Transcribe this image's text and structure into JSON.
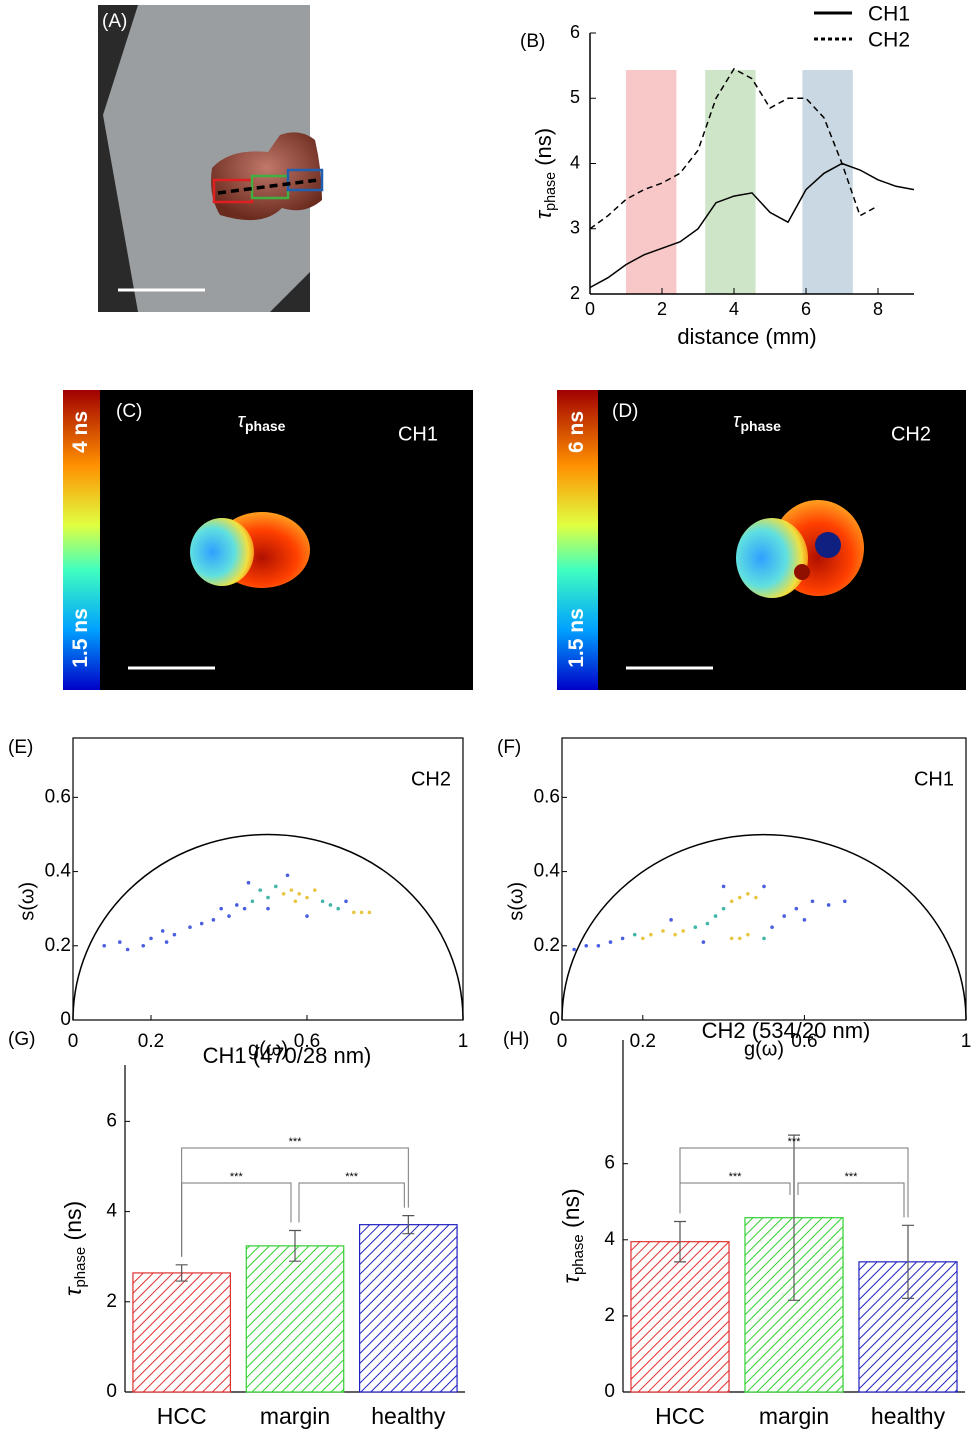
{
  "chart_data": [
    {
      "type": "image",
      "panel": "(A)"
    },
    {
      "type": "line",
      "panel": "(B)",
      "xlabel": "distance (mm)",
      "ylabel": {
        "symbol": "τ",
        "sub": "phase",
        "unit": " (ns)"
      },
      "xlim": [
        0,
        9
      ],
      "ylim": [
        2,
        6
      ],
      "xticks": [
        0,
        2,
        4,
        6,
        8
      ],
      "yticks": [
        2,
        3,
        4,
        5,
        6
      ],
      "legend": "upper right",
      "x": [
        0,
        0.5,
        1,
        1.5,
        2,
        2.5,
        3,
        3.5,
        4,
        4.5,
        5,
        5.5,
        6,
        6.5,
        7,
        7.5,
        8,
        8.5,
        9
      ],
      "series": [
        {
          "name": "CH1",
          "color": "#000000",
          "dash": "solid",
          "values": [
            2.1,
            2.25,
            2.45,
            2.6,
            2.7,
            2.8,
            3.0,
            3.4,
            3.5,
            3.55,
            3.25,
            3.1,
            3.6,
            3.85,
            4.0,
            3.9,
            3.75,
            3.65,
            3.6
          ]
        },
        {
          "name": "CH2",
          "color": "#000000",
          "dash": "dashed",
          "values": [
            3.0,
            3.2,
            3.45,
            3.6,
            3.7,
            3.85,
            4.2,
            5.0,
            5.45,
            5.3,
            4.85,
            5.0,
            5.0,
            4.7,
            4.0,
            3.2,
            3.35,
            null,
            null
          ]
        }
      ],
      "regions": [
        {
          "xmin": 1,
          "xmax": 2.4,
          "color": "#f8c8c8"
        },
        {
          "xmin": 3.2,
          "xmax": 4.6,
          "color": "#cfe5c8"
        },
        {
          "xmin": 5.9,
          "xmax": 7.3,
          "color": "#c9d8e2"
        }
      ]
    },
    {
      "type": "image",
      "panel": "(C)",
      "title": {
        "symbol": "τ",
        "sub": "phase"
      },
      "channel": "CH1",
      "colorbar": {
        "max": "4 ns",
        "min": "1.5 ns"
      }
    },
    {
      "type": "image",
      "panel": "(D)",
      "title": {
        "symbol": "τ",
        "sub": "phase"
      },
      "channel": "CH2",
      "colorbar": {
        "max": "6 ns",
        "min": "1.5 ns"
      }
    },
    {
      "type": "scatter",
      "panel": "(E)",
      "annotation": "CH2",
      "xlabel": "g(ω)",
      "ylabel": "s(ω)",
      "xlim": [
        0,
        1
      ],
      "ylim": [
        0,
        0.76
      ],
      "xticks": [
        0,
        0.2,
        0.6,
        1
      ],
      "yticks": [
        0,
        0.2,
        0.4,
        0.6
      ],
      "semicircle": {
        "center": 0.5,
        "radius": 0.5
      },
      "x": [
        0.12,
        0.14,
        0.18,
        0.2,
        0.23,
        0.26,
        0.3,
        0.33,
        0.36,
        0.38,
        0.4,
        0.42,
        0.44,
        0.46,
        0.48,
        0.5,
        0.52,
        0.54,
        0.56,
        0.58,
        0.6,
        0.57,
        0.62,
        0.64,
        0.66,
        0.68,
        0.7,
        0.72,
        0.74,
        0.76,
        0.5,
        0.45,
        0.55,
        0.6,
        0.24,
        0.08
      ],
      "y": [
        0.21,
        0.19,
        0.2,
        0.22,
        0.24,
        0.23,
        0.25,
        0.26,
        0.27,
        0.3,
        0.28,
        0.31,
        0.3,
        0.32,
        0.35,
        0.33,
        0.36,
        0.34,
        0.35,
        0.34,
        0.33,
        0.32,
        0.35,
        0.32,
        0.31,
        0.3,
        0.32,
        0.29,
        0.29,
        0.29,
        0.3,
        0.37,
        0.39,
        0.28,
        0.21,
        0.2
      ],
      "colors": [
        "#4a5ee0",
        "#4a5ee0",
        "#4a5ee0",
        "#4a5ee0",
        "#4a5ee0",
        "#4a5ee0",
        "#4a5ee0",
        "#4a5ee0",
        "#4a5ee0",
        "#4a5ee0",
        "#4a5ee0",
        "#4a5ee0",
        "#4a5ee0",
        "#3fb6a8",
        "#3fb6a8",
        "#3fb6a8",
        "#3fb6a8",
        "#e8c542",
        "#e8c542",
        "#e8c542",
        "#e8c542",
        "#e8c542",
        "#e8c542",
        "#3fb6a8",
        "#3fb6a8",
        "#3fb6a8",
        "#4a5ee0",
        "#e8c542",
        "#e8c542",
        "#e8c542",
        "#4a5ee0",
        "#4a5ee0",
        "#4a5ee0",
        "#4a5ee0",
        "#4a5ee0",
        "#4a5ee0"
      ]
    },
    {
      "type": "scatter",
      "panel": "(F)",
      "annotation": "CH1",
      "xlabel": "g(ω)",
      "ylabel": "s(ω)",
      "xlim": [
        0,
        1
      ],
      "ylim": [
        0,
        0.76
      ],
      "xticks": [
        0,
        0.2,
        0.6,
        1
      ],
      "yticks": [
        0,
        0.2,
        0.4,
        0.6
      ],
      "semicircle": {
        "center": 0.5,
        "radius": 0.5
      },
      "x": [
        0.03,
        0.06,
        0.09,
        0.12,
        0.15,
        0.18,
        0.2,
        0.22,
        0.25,
        0.28,
        0.3,
        0.33,
        0.36,
        0.38,
        0.4,
        0.42,
        0.44,
        0.46,
        0.48,
        0.42,
        0.44,
        0.46,
        0.5,
        0.52,
        0.55,
        0.58,
        0.62,
        0.66,
        0.7,
        0.35,
        0.4,
        0.5,
        0.27,
        0.6
      ],
      "y": [
        0.19,
        0.2,
        0.2,
        0.21,
        0.22,
        0.23,
        0.22,
        0.23,
        0.24,
        0.23,
        0.24,
        0.25,
        0.26,
        0.28,
        0.3,
        0.32,
        0.33,
        0.34,
        0.33,
        0.22,
        0.22,
        0.23,
        0.22,
        0.25,
        0.28,
        0.3,
        0.32,
        0.31,
        0.32,
        0.21,
        0.36,
        0.36,
        0.27,
        0.27
      ],
      "colors": [
        "#4a5ee0",
        "#4a5ee0",
        "#4a5ee0",
        "#4a5ee0",
        "#4a5ee0",
        "#3fb6a8",
        "#e8c542",
        "#e8c542",
        "#e8c542",
        "#e8c542",
        "#e8c542",
        "#3fb6a8",
        "#3fb6a8",
        "#3fb6a8",
        "#3fb6a8",
        "#e8c542",
        "#e8c542",
        "#e8c542",
        "#e8c542",
        "#e8c542",
        "#e8c542",
        "#e8c542",
        "#3fb6a8",
        "#4a5ee0",
        "#4a5ee0",
        "#4a5ee0",
        "#4a5ee0",
        "#4a5ee0",
        "#4a5ee0",
        "#4a5ee0",
        "#4a5ee0",
        "#4a5ee0",
        "#4a5ee0",
        "#4a5ee0"
      ]
    },
    {
      "type": "bar",
      "panel": "(G)",
      "title": "CH1 (470/28 nm)",
      "ylabel": {
        "symbol": "τ",
        "sub": "phase",
        "unit": " (ns)"
      },
      "categories": [
        "HCC",
        "margin",
        "healthy"
      ],
      "values": [
        2.64,
        3.24,
        3.71
      ],
      "errors": [
        0.18,
        0.34,
        0.2
      ],
      "colors": [
        "#e03030",
        "#30d030",
        "#2020c0"
      ],
      "ylim": [
        0,
        7.25
      ],
      "yticks": [
        0,
        2,
        4,
        6
      ],
      "significance": [
        {
          "from": 0,
          "to": 2,
          "label": "***"
        },
        {
          "from": 0,
          "to": 1,
          "label": "***"
        },
        {
          "from": 1,
          "to": 2,
          "label": "***"
        }
      ]
    },
    {
      "type": "bar",
      "panel": "(H)",
      "title": "CH2 (534/20 nm)",
      "ylabel": {
        "symbol": "τ",
        "sub": "phase",
        "unit": " (ns)"
      },
      "categories": [
        "HCC",
        "margin",
        "healthy"
      ],
      "values": [
        3.95,
        4.58,
        3.42
      ],
      "errors": [
        0.53,
        2.17,
        0.96
      ],
      "colors": [
        "#e03030",
        "#30d030",
        "#2020c0"
      ],
      "ylim": [
        0,
        9.25
      ],
      "yticks": [
        0,
        2,
        4,
        6
      ],
      "significance": [
        {
          "from": 0,
          "to": 2,
          "label": "***"
        },
        {
          "from": 0,
          "to": 1,
          "label": "***"
        },
        {
          "from": 1,
          "to": 2,
          "label": "***"
        }
      ]
    }
  ]
}
